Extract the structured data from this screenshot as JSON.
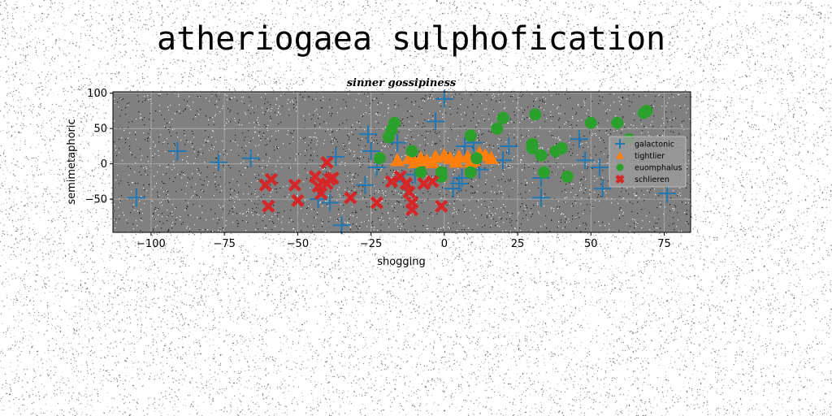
{
  "page_title": "atheriogaea sulphofication",
  "chart_data": {
    "type": "scatter",
    "title": "sinner gossipiness",
    "xlabel": "shogging",
    "ylabel": "semimetaphoric",
    "xlim": [
      -113,
      84
    ],
    "ylim": [
      -97,
      102
    ],
    "xticks": [
      -100,
      -75,
      -50,
      -25,
      0,
      25,
      50,
      75
    ],
    "yticks": [
      100,
      50,
      0,
      -50
    ],
    "xtick_labels": [
      "−100",
      "−75",
      "−50",
      "−25",
      "0",
      "25",
      "50",
      "75"
    ],
    "ytick_labels": [
      "100",
      "50",
      "0",
      "−50"
    ],
    "grid": true,
    "legend_position": "right",
    "colors": {
      "plot_bg": "#808080",
      "galactonic": "#1f77b4",
      "tightlier": "#ff7f0e",
      "euomphalus": "#2ca02c",
      "schlieren": "#d62728"
    },
    "series": [
      {
        "name": "galactonic",
        "marker": "plus",
        "points": [
          [
            -105,
            -48
          ],
          [
            -91,
            18
          ],
          [
            -77,
            2
          ],
          [
            -66,
            8
          ],
          [
            -43,
            -50
          ],
          [
            -39,
            -55
          ],
          [
            -37,
            10
          ],
          [
            -35,
            -87
          ],
          [
            -27,
            -30
          ],
          [
            -26,
            42
          ],
          [
            -25,
            18
          ],
          [
            -23,
            -5
          ],
          [
            -16,
            30
          ],
          [
            -14,
            -25
          ],
          [
            -10,
            -15
          ],
          [
            -3,
            60
          ],
          [
            0,
            92
          ],
          [
            3,
            -35
          ],
          [
            5,
            -28
          ],
          [
            6,
            -20
          ],
          [
            7,
            25
          ],
          [
            10,
            30
          ],
          [
            12,
            -8
          ],
          [
            20,
            5
          ],
          [
            22,
            25
          ],
          [
            33,
            -20
          ],
          [
            33,
            -48
          ],
          [
            46,
            35
          ],
          [
            48,
            5
          ],
          [
            53,
            -5
          ],
          [
            54,
            -35
          ],
          [
            76,
            -42
          ]
        ]
      },
      {
        "name": "tightlier",
        "marker": "triangle",
        "points": [
          [
            -16,
            5
          ],
          [
            -12,
            8
          ],
          [
            -8,
            8
          ],
          [
            -6,
            5
          ],
          [
            -3,
            10
          ],
          [
            0,
            12
          ],
          [
            2,
            8
          ],
          [
            5,
            10
          ],
          [
            8,
            10
          ],
          [
            10,
            5
          ],
          [
            12,
            15
          ],
          [
            14,
            12
          ],
          [
            16,
            8
          ],
          [
            -10,
            2
          ],
          [
            -4,
            2
          ],
          [
            4,
            3
          ],
          [
            9,
            3
          ]
        ]
      },
      {
        "name": "euomphalus",
        "marker": "circle",
        "points": [
          [
            -22,
            8
          ],
          [
            -19,
            38
          ],
          [
            -18,
            48
          ],
          [
            -17,
            58
          ],
          [
            -11,
            18
          ],
          [
            -8,
            -12
          ],
          [
            -1,
            -12
          ],
          [
            -1,
            -18
          ],
          [
            9,
            40
          ],
          [
            9,
            -12
          ],
          [
            11,
            8
          ],
          [
            18,
            50
          ],
          [
            20,
            65
          ],
          [
            30,
            22
          ],
          [
            30,
            28
          ],
          [
            31,
            70
          ],
          [
            33,
            12
          ],
          [
            34,
            -12
          ],
          [
            38,
            18
          ],
          [
            40,
            22
          ],
          [
            42,
            -18
          ],
          [
            50,
            58
          ],
          [
            59,
            58
          ],
          [
            63,
            35
          ],
          [
            68,
            72
          ],
          [
            69,
            75
          ]
        ]
      },
      {
        "name": "schlieren",
        "marker": "x",
        "points": [
          [
            -61,
            -30
          ],
          [
            -59,
            -22
          ],
          [
            -60,
            -60
          ],
          [
            -51,
            -30
          ],
          [
            -50,
            -52
          ],
          [
            -44,
            -18
          ],
          [
            -43,
            -32
          ],
          [
            -42,
            -42
          ],
          [
            -40,
            -28
          ],
          [
            -39,
            -22
          ],
          [
            -40,
            2
          ],
          [
            -38,
            -20
          ],
          [
            -32,
            -48
          ],
          [
            -23,
            -55
          ],
          [
            -18,
            -25
          ],
          [
            -15,
            -18
          ],
          [
            -13,
            -28
          ],
          [
            -12,
            -40
          ],
          [
            -11,
            -55
          ],
          [
            -11,
            -65
          ],
          [
            -7,
            -28
          ],
          [
            -4,
            -25
          ],
          [
            -1,
            -60
          ]
        ]
      }
    ]
  }
}
